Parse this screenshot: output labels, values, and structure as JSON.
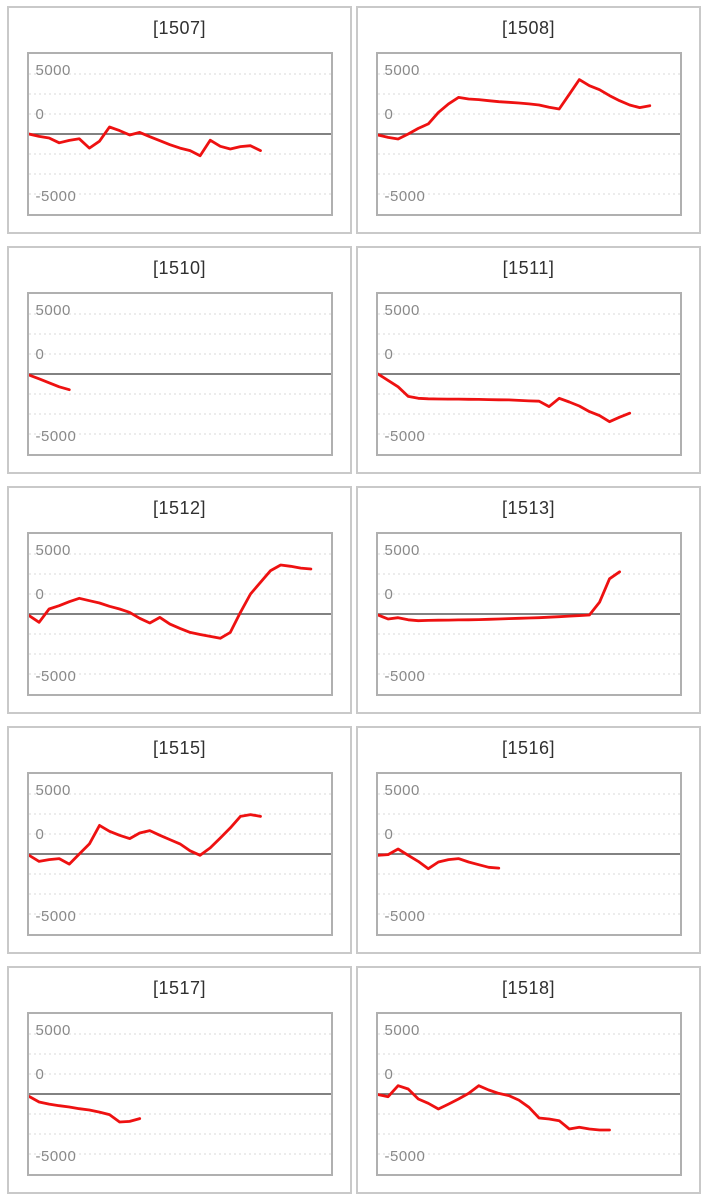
{
  "axis": {
    "y_max": 5000,
    "y_min": -5000,
    "grid_step": 1250,
    "slots": 30,
    "tick_labels": {
      "top": "5000",
      "zero": "0",
      "bottom": "-5000"
    }
  },
  "colors": {
    "series": "#ee1111",
    "gridline": "#d9d9d9",
    "zero_line": "#595959",
    "chart_border": "#b0b0b0",
    "card_border": "#c9c9c9",
    "tick_label": "#898989",
    "title_text": "#303030"
  },
  "chart_data": [
    {
      "type": "line",
      "title": "[1507]",
      "ylim": [
        -5000,
        5000
      ],
      "values": [
        0,
        -150,
        -250,
        -550,
        -400,
        -300,
        -880,
        -450,
        440,
        210,
        -60,
        100,
        -170,
        -420,
        -670,
        -880,
        -1040,
        -1360,
        -390,
        -770,
        -940,
        -790,
        -730,
        -1040
      ]
    },
    {
      "type": "line",
      "title": "[1508]",
      "ylim": [
        -5000,
        5000
      ],
      "values": [
        -60,
        -210,
        -310,
        0,
        350,
        630,
        1350,
        1880,
        2290,
        2190,
        2150,
        2080,
        2020,
        1980,
        1940,
        1880,
        1810,
        1670,
        1560,
        2480,
        3400,
        3020,
        2770,
        2400,
        2080,
        1810,
        1650,
        1770
      ]
    },
    {
      "type": "line",
      "title": "[1510]",
      "ylim": [
        -5000,
        5000
      ],
      "values": [
        -60,
        -300,
        -550,
        -800,
        -980
      ]
    },
    {
      "type": "line",
      "title": "[1511]",
      "ylim": [
        -5000,
        5000
      ],
      "values": [
        0,
        -400,
        -800,
        -1400,
        -1520,
        -1550,
        -1560,
        -1570,
        -1570,
        -1580,
        -1590,
        -1600,
        -1610,
        -1620,
        -1650,
        -1680,
        -1700,
        -2040,
        -1520,
        -1750,
        -2000,
        -2350,
        -2600,
        -2980,
        -2700,
        -2450
      ]
    },
    {
      "type": "line",
      "title": "[1512]",
      "ylim": [
        -5000,
        5000
      ],
      "values": [
        -100,
        -520,
        310,
        520,
        770,
        980,
        830,
        690,
        480,
        310,
        100,
        -270,
        -560,
        -210,
        -630,
        -900,
        -1150,
        -1280,
        -1400,
        -1520,
        -1150,
        100,
        1250,
        1980,
        2710,
        3060,
        2980,
        2870,
        2810
      ]
    },
    {
      "type": "line",
      "title": "[1513]",
      "ylim": [
        -5000,
        5000
      ],
      "values": [
        -60,
        -310,
        -230,
        -360,
        -420,
        -400,
        -390,
        -380,
        -370,
        -360,
        -350,
        -330,
        -310,
        -290,
        -270,
        -250,
        -230,
        -200,
        -170,
        -130,
        -100,
        -60,
        730,
        2200,
        2640
      ]
    },
    {
      "type": "line",
      "title": "[1515]",
      "ylim": [
        -5000,
        5000
      ],
      "values": [
        -80,
        -460,
        -350,
        -290,
        -630,
        0,
        630,
        1790,
        1420,
        1170,
        960,
        1310,
        1460,
        1170,
        900,
        630,
        200,
        -80,
        380,
        1000,
        1630,
        2350,
        2460,
        2350
      ]
    },
    {
      "type": "line",
      "title": "[1516]",
      "ylim": [
        -5000,
        5000
      ],
      "values": [
        -80,
        -40,
        310,
        -80,
        -460,
        -920,
        -500,
        -350,
        -290,
        -500,
        -670,
        -830,
        -880
      ]
    },
    {
      "type": "line",
      "title": "[1517]",
      "ylim": [
        -5000,
        5000
      ],
      "values": [
        -150,
        -500,
        -630,
        -730,
        -810,
        -920,
        -1000,
        -1130,
        -1290,
        -1750,
        -1710,
        -1540
      ]
    },
    {
      "type": "line",
      "title": "[1518]",
      "ylim": [
        -5000,
        5000
      ],
      "values": [
        -40,
        -170,
        520,
        310,
        -310,
        -580,
        -940,
        -630,
        -310,
        40,
        520,
        250,
        40,
        -100,
        -380,
        -830,
        -1500,
        -1560,
        -1670,
        -2190,
        -2080,
        -2190,
        -2250,
        -2250
      ]
    }
  ]
}
